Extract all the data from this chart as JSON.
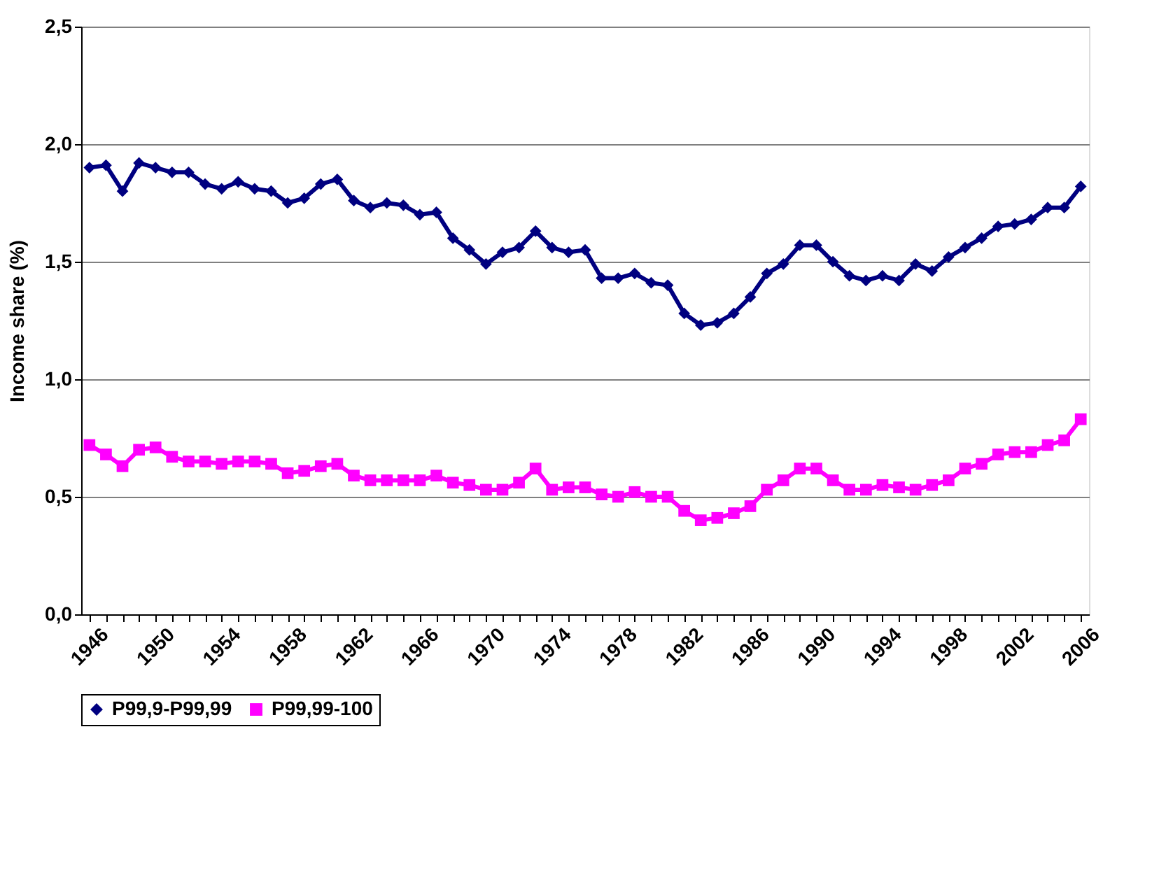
{
  "chart_data": {
    "type": "line",
    "ylabel": "Income share (%)",
    "categories": [
      "1946",
      null,
      null,
      null,
      "1950",
      null,
      null,
      null,
      "1954",
      null,
      null,
      null,
      "1958",
      null,
      null,
      null,
      "1962",
      null,
      null,
      null,
      "1966",
      null,
      null,
      null,
      "1970",
      null,
      null,
      null,
      "1974",
      null,
      null,
      null,
      "1978",
      null,
      null,
      null,
      "1982",
      null,
      null,
      null,
      "1986",
      null,
      null,
      null,
      "1990",
      null,
      null,
      null,
      "1994",
      null,
      null,
      null,
      "1998",
      null,
      null,
      null,
      "2002",
      null,
      null,
      null,
      "2006"
    ],
    "series": [
      {
        "name": "P99,9-P99,99",
        "color": "#000080",
        "marker": "diamond",
        "values": [
          1.9,
          1.91,
          1.8,
          1.92,
          1.9,
          1.88,
          1.88,
          1.83,
          1.81,
          1.84,
          1.81,
          1.8,
          1.75,
          1.77,
          1.83,
          1.85,
          1.76,
          1.73,
          1.75,
          1.74,
          1.7,
          1.71,
          1.6,
          1.55,
          1.49,
          1.54,
          1.56,
          1.63,
          1.56,
          1.54,
          1.55,
          1.43,
          1.43,
          1.45,
          1.41,
          1.4,
          1.28,
          1.23,
          1.24,
          1.28,
          1.35,
          1.45,
          1.49,
          1.57,
          1.57,
          1.5,
          1.44,
          1.42,
          1.44,
          1.42,
          1.49,
          1.46,
          1.52,
          1.56,
          1.6,
          1.65,
          1.66,
          1.68,
          1.73,
          1.73,
          1.82
        ]
      },
      {
        "name": "P99,99-100",
        "color": "#ff00ff",
        "marker": "square",
        "values": [
          0.72,
          0.68,
          0.63,
          0.7,
          0.71,
          0.67,
          0.65,
          0.65,
          0.64,
          0.65,
          0.65,
          0.64,
          0.6,
          0.61,
          0.63,
          0.64,
          0.59,
          0.57,
          0.57,
          0.57,
          0.57,
          0.59,
          0.56,
          0.55,
          0.53,
          0.53,
          0.56,
          0.62,
          0.53,
          0.54,
          0.54,
          0.51,
          0.5,
          0.52,
          0.5,
          0.5,
          0.44,
          0.4,
          0.41,
          0.43,
          0.46,
          0.53,
          0.57,
          0.62,
          0.62,
          0.57,
          0.53,
          0.53,
          0.55,
          0.54,
          0.53,
          0.55,
          0.57,
          0.62,
          0.64,
          0.68,
          0.69,
          0.69,
          0.72,
          0.74,
          0.83
        ]
      }
    ],
    "ylim": [
      0,
      2.5
    ],
    "yticks": [
      {
        "value": 0,
        "label": "0,0"
      },
      {
        "value": 0.5,
        "label": "0,5"
      },
      {
        "value": 1,
        "label": "1,0"
      },
      {
        "value": 1.5,
        "label": "1,5"
      },
      {
        "value": 2,
        "label": "2,0"
      },
      {
        "value": 2.5,
        "label": "2,5"
      }
    ],
    "grid": "y",
    "legend": "bottom",
    "line_style": "solid"
  }
}
